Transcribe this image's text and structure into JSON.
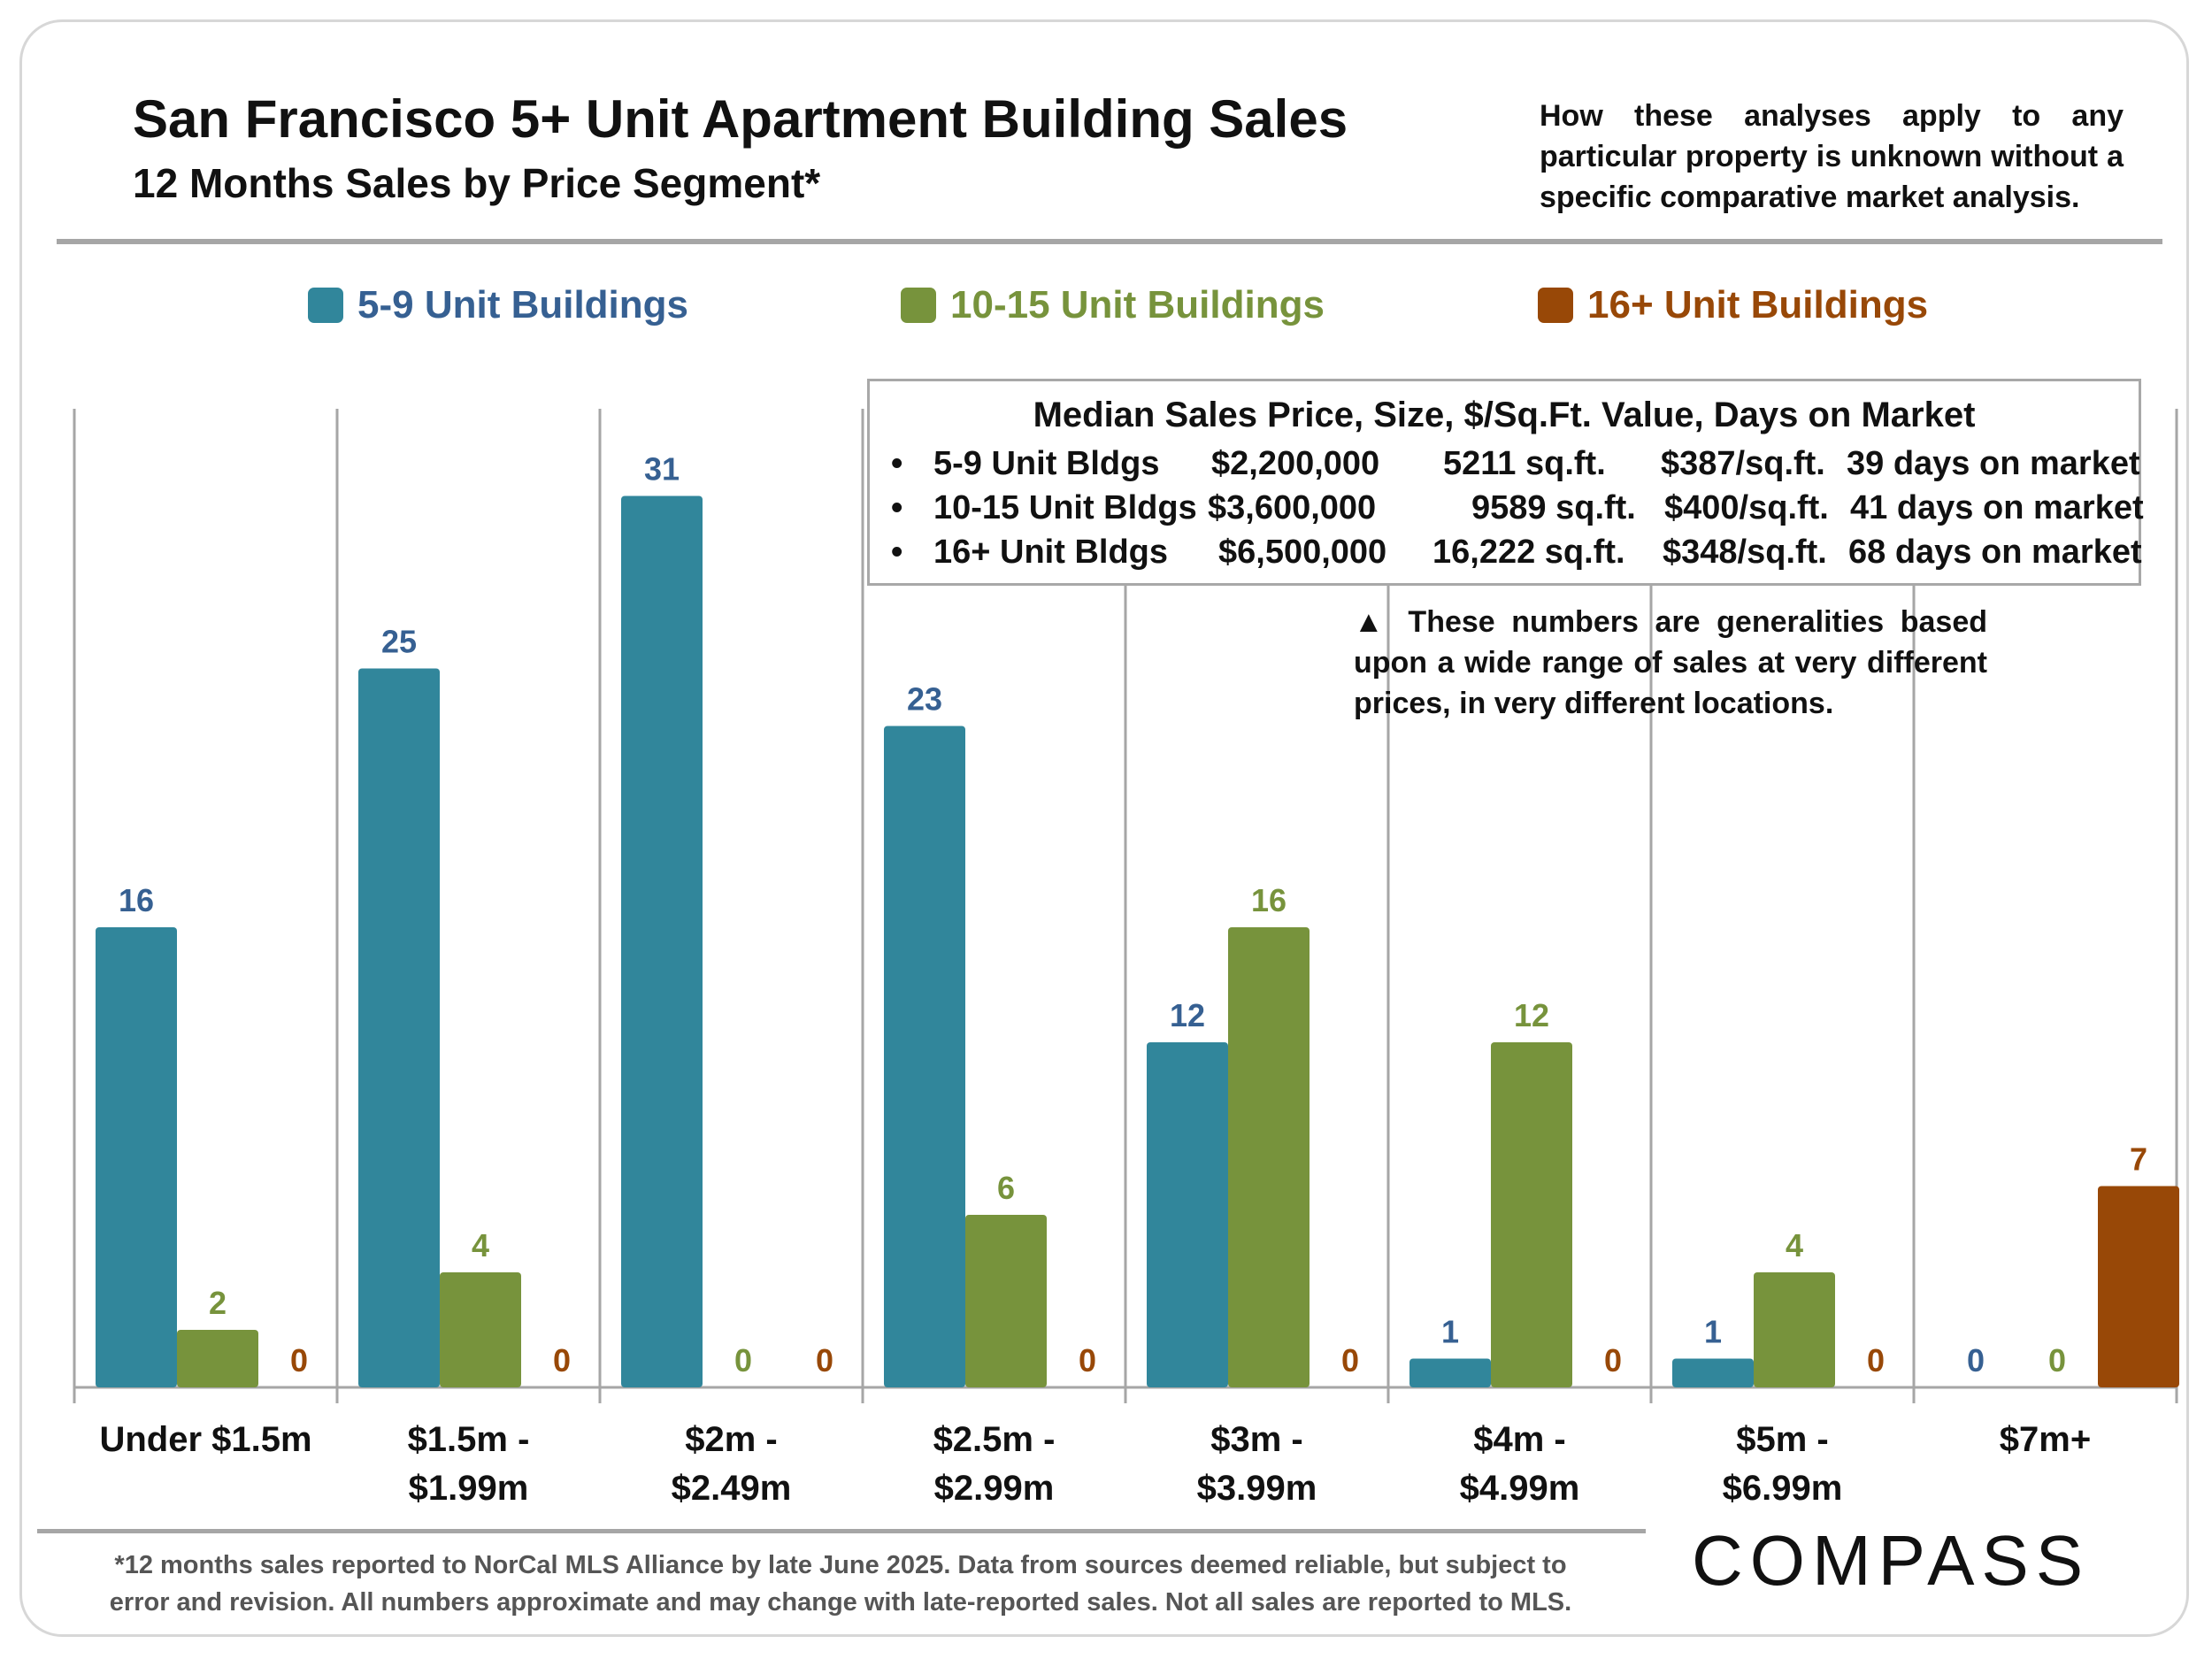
{
  "header": {
    "title": "San Francisco 5+ Unit Apartment Building Sales",
    "subtitle": "12 Months Sales by Price Segment*",
    "disclaimer": "How these analyses apply to any particular property is unknown without a specific comparative market analysis."
  },
  "median_box": {
    "title": "Median Sales Price, Size, $/Sq.Ft. Value, Days on Market",
    "rows": [
      {
        "bullet": "•",
        "label": "5-9 Unit Bldgs",
        "price": "$2,200,000",
        "size": "5211 sq.ft.",
        "ppsf": "$387/sq.ft.",
        "dom": "39 days on market"
      },
      {
        "bullet": "•",
        "label": "10-15 Unit Bldgs",
        "price": "$3,600,000",
        "size": "9589 sq.ft.",
        "ppsf": "$400/sq.ft.",
        "dom": "41 days on market"
      },
      {
        "bullet": "•",
        "label": "16+ Unit Bldgs",
        "price": "$6,500,000",
        "size": "16,222 sq.ft.",
        "ppsf": "$348/sq.ft.",
        "dom": "68 days on market"
      }
    ]
  },
  "note": "▲ These numbers are generalities based upon a wide range of sales at very different prices, in very different locations.",
  "footnote": {
    "line1": "*12 months sales reported to NorCal MLS Alliance by late June 2025. Data from sources deemed reliable, but subject to",
    "line2": "error and revision. All numbers approximate and may change with late-reported sales. Not all sales are reported to MLS."
  },
  "logo": "COMPASS",
  "colors": {
    "series1": "#31869b",
    "series2": "#77933c",
    "series3": "#984807",
    "label1": "#366092",
    "axis": "#a6a6a6"
  },
  "chart_data": {
    "type": "bar",
    "title": "12 Months Sales by Price Segment*",
    "xlabel": "",
    "ylabel": "",
    "ylim": [
      0,
      35
    ],
    "grid": false,
    "legend_position": "top",
    "categories": [
      [
        "Under $1.5m"
      ],
      [
        "$1.5m -",
        "$1.99m"
      ],
      [
        "$2m -",
        "$2.49m"
      ],
      [
        "$2.5m -",
        "$2.99m"
      ],
      [
        "$3m -",
        "$3.99m"
      ],
      [
        "$4m -",
        "$4.99m"
      ],
      [
        "$5m -",
        "$6.99m"
      ],
      [
        "$7m+"
      ]
    ],
    "series": [
      {
        "name": "5-9 Unit Buildings",
        "values": [
          16,
          25,
          31,
          23,
          12,
          1,
          1,
          0
        ]
      },
      {
        "name": "10-15 Unit Buildings",
        "values": [
          2,
          4,
          0,
          6,
          16,
          12,
          4,
          0
        ]
      },
      {
        "name": "16+ Unit Buildings",
        "values": [
          0,
          0,
          0,
          0,
          0,
          0,
          0,
          7
        ]
      }
    ]
  }
}
